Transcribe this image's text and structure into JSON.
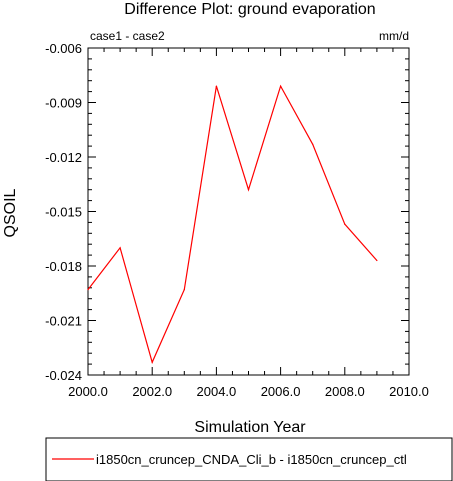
{
  "chart_data": {
    "type": "line",
    "title": "Difference Plot: ground evaporation",
    "subtitle_left": "case1 - case2",
    "subtitle_right": "mm/d",
    "xlabel": "Simulation Year",
    "ylabel": "QSOIL",
    "xlim": [
      2000,
      2010
    ],
    "ylim": [
      -0.024,
      -0.006
    ],
    "x_ticks": [
      2000,
      2002,
      2004,
      2006,
      2008,
      2010
    ],
    "x_tick_labels": [
      "2000.0",
      "2002.0",
      "2004.0",
      "2006.0",
      "2008.0",
      "2010.0"
    ],
    "y_ticks": [
      -0.006,
      -0.009,
      -0.012,
      -0.015,
      -0.018,
      -0.021,
      -0.024
    ],
    "y_tick_labels": [
      "-0.006",
      "-0.009",
      "-0.012",
      "-0.015",
      "-0.018",
      "-0.021",
      "-0.024"
    ],
    "grid": false,
    "legend_position": "bottom",
    "series": [
      {
        "name": "i1850cn_cruncep_CNDA_Cli_b - i1850cn_cruncep_ctl",
        "color": "#ff0000",
        "x": [
          2000,
          2001,
          2002,
          2003,
          2004,
          2005,
          2006,
          2007,
          2008,
          2009
        ],
        "values": [
          -0.0193,
          -0.017,
          -0.0233,
          -0.0193,
          -0.0081,
          -0.0138,
          -0.0081,
          -0.0113,
          -0.0157,
          -0.0177
        ]
      }
    ]
  }
}
